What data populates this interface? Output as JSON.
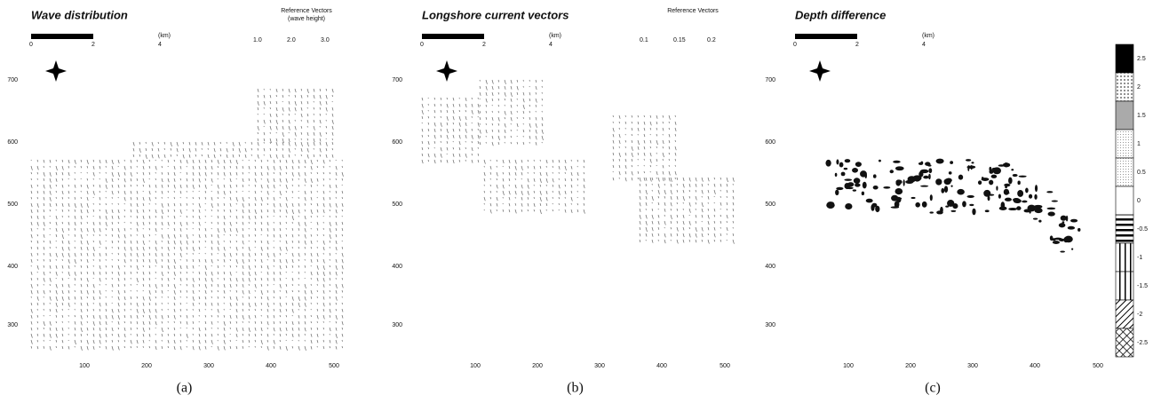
{
  "panels": [
    {
      "title": "Wave distribution",
      "caption": "(a)",
      "scale_bar": [
        "0",
        "2",
        "4",
        "(km)"
      ],
      "reference": {
        "title": "Reference Vectors",
        "subtitle": "(wave height)",
        "labels": [
          "1.0",
          "2.0",
          "3.0"
        ]
      },
      "yticks": [
        "700",
        "600",
        "500",
        "400",
        "300"
      ],
      "xticks": [
        "100",
        "200",
        "300",
        "400",
        "500"
      ]
    },
    {
      "title": "Longshore current vectors",
      "caption": "(b)",
      "scale_bar": [
        "0",
        "2",
        "4",
        "(km)"
      ],
      "reference": {
        "title": "Reference Vectors",
        "labels": [
          "0.1",
          "0.15",
          "0.2"
        ]
      },
      "yticks": [
        "700",
        "600",
        "500",
        "400",
        "300"
      ],
      "xticks": [
        "100",
        "200",
        "300",
        "400",
        "500"
      ]
    },
    {
      "title": "Depth difference",
      "caption": "(c)",
      "scale_bar": [
        "0",
        "2",
        "4",
        "(km)"
      ],
      "yticks": [
        "700",
        "600",
        "500",
        "400",
        "300"
      ],
      "xticks": [
        "100",
        "200",
        "300",
        "400",
        "500"
      ]
    }
  ],
  "legend": {
    "labels": [
      "2.5",
      "2",
      "1.5",
      "1",
      "0.5",
      "0",
      "-0.5",
      "-1",
      "-1.5",
      "-2",
      "-2.5"
    ]
  }
}
